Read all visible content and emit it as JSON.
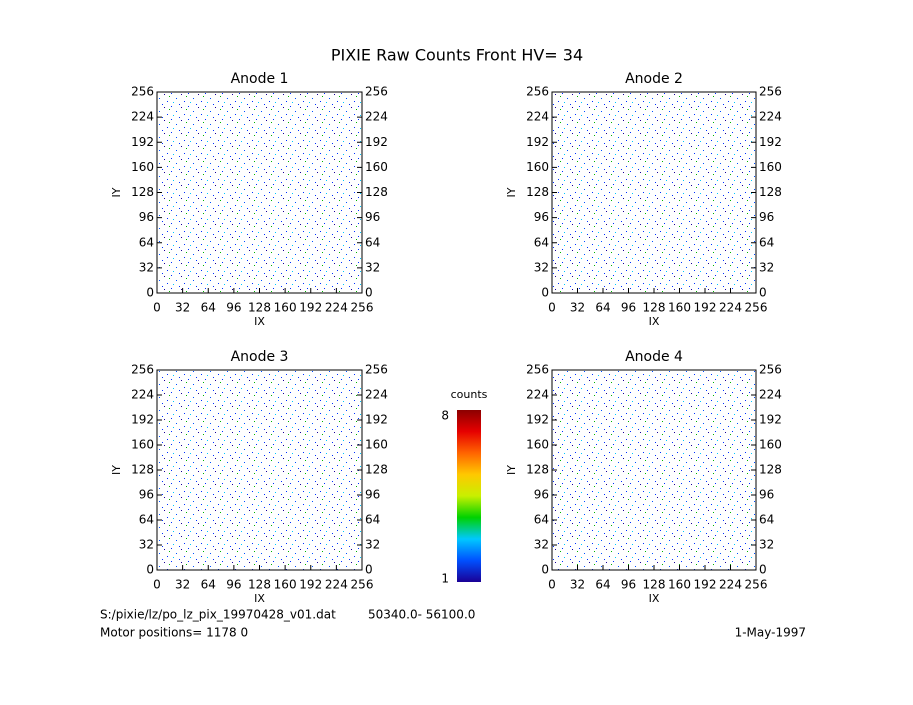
{
  "title": "PIXIE Raw Counts Front HV= 34",
  "file": "S:/pixie/lz/po_lz_pix_19970428_v01.dat",
  "range": "50340.0- 56100.0",
  "motor": "Motor positions= 1178 0",
  "date": "1-May-1997",
  "colorbar": {
    "label": "counts",
    "lim": [
      1,
      8
    ],
    "ticks": [
      1,
      8
    ],
    "colors": [
      "#1a0096",
      "#0050ff",
      "#00c8ff",
      "#00d200",
      "#c8f000",
      "#ffc800",
      "#ff6400",
      "#e60000",
      "#8c0000"
    ]
  },
  "chart_data": [
    {
      "type": "heatmap",
      "title": "Anode 1",
      "xlabel": "IX",
      "ylabel": "IY",
      "xlim": [
        0,
        256
      ],
      "ylim": [
        0,
        256
      ],
      "xticks": [
        0,
        32,
        64,
        96,
        128,
        160,
        192,
        224,
        256
      ],
      "yticks": [
        0,
        32,
        64,
        96,
        128,
        160,
        192,
        224,
        256
      ]
    },
    {
      "type": "heatmap",
      "title": "Anode 2",
      "xlabel": "IX",
      "ylabel": "IY",
      "xlim": [
        0,
        256
      ],
      "ylim": [
        0,
        256
      ],
      "xticks": [
        0,
        32,
        64,
        96,
        128,
        160,
        192,
        224,
        256
      ],
      "yticks": [
        0,
        32,
        64,
        96,
        128,
        160,
        192,
        224,
        256
      ]
    },
    {
      "type": "heatmap",
      "title": "Anode 3",
      "xlabel": "IX",
      "ylabel": "IY",
      "xlim": [
        0,
        256
      ],
      "ylim": [
        0,
        256
      ],
      "xticks": [
        0,
        32,
        64,
        96,
        128,
        160,
        192,
        224,
        256
      ],
      "yticks": [
        0,
        32,
        64,
        96,
        128,
        160,
        192,
        224,
        256
      ]
    },
    {
      "type": "heatmap",
      "title": "Anode 4",
      "xlabel": "IX",
      "ylabel": "IY",
      "xlim": [
        0,
        256
      ],
      "ylim": [
        0,
        256
      ],
      "xticks": [
        0,
        32,
        64,
        96,
        128,
        160,
        192,
        224,
        256
      ],
      "yticks": [
        0,
        32,
        64,
        96,
        128,
        160,
        192,
        224,
        256
      ]
    }
  ]
}
